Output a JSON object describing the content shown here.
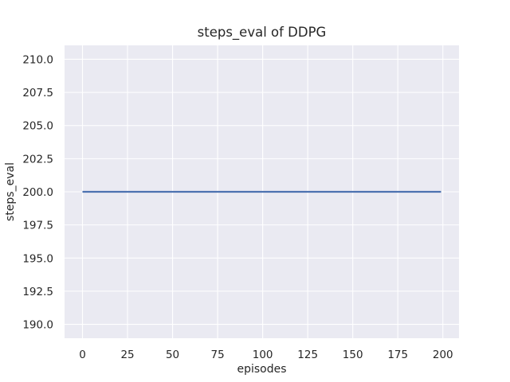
{
  "chart_data": {
    "type": "line",
    "title": "steps_eval of DDPG",
    "xlabel": "episodes",
    "ylabel": "steps_eval",
    "xlim": [
      -9.95,
      208.95
    ],
    "ylim": [
      188.95,
      211.05
    ],
    "xticks": {
      "values": [
        0,
        25,
        50,
        75,
        100,
        125,
        150,
        175,
        200
      ],
      "labels": [
        "0",
        "25",
        "50",
        "75",
        "100",
        "125",
        "150",
        "175",
        "200"
      ]
    },
    "yticks": {
      "values": [
        190.0,
        192.5,
        195.0,
        197.5,
        200.0,
        202.5,
        205.0,
        207.5,
        210.0
      ],
      "labels": [
        "190.0",
        "192.5",
        "195.0",
        "197.5",
        "200.0",
        "202.5",
        "205.0",
        "207.5",
        "210.0"
      ]
    },
    "grid": true,
    "legend": "none",
    "series": [
      {
        "name": "DDPG steps_eval",
        "x": [
          0,
          199
        ],
        "y": [
          200.0,
          200.0
        ]
      }
    ],
    "style": {
      "figure_background": "#ffffff",
      "axes_background": "#eaeaf2",
      "grid_color": "#ffffff",
      "text_color": "#262626",
      "line_color": "#4c72b0"
    }
  }
}
